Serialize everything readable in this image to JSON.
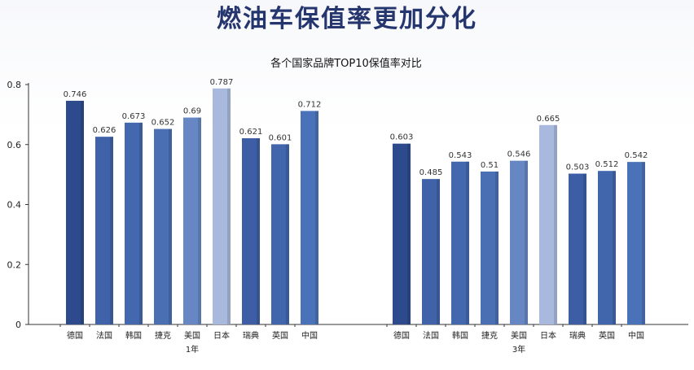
{
  "slide": {
    "title": "燃油车保值率更加分化"
  },
  "chart_data": {
    "type": "bar",
    "title": "各个国家品牌TOP10保值率对比",
    "xlabel": "",
    "ylabel": "",
    "ylim": [
      0,
      0.8
    ],
    "yticks": [
      "0",
      "0.2",
      "0.4",
      "0.6",
      "0.8"
    ],
    "grid": false,
    "groups": [
      {
        "label": "1年",
        "categories": [
          "德国",
          "法国",
          "韩国",
          "捷克",
          "美国",
          "日本",
          "瑞典",
          "英国",
          "中国"
        ],
        "values": [
          0.746,
          0.626,
          0.673,
          0.652,
          0.69,
          0.787,
          0.621,
          0.601,
          0.712
        ],
        "value_labels": [
          "0.746",
          "0.626",
          "0.673",
          "0.652",
          "0.69",
          "0.787",
          "0.621",
          "0.601",
          "0.712"
        ]
      },
      {
        "label": "3年",
        "categories": [
          "德国",
          "法国",
          "韩国",
          "捷克",
          "美国",
          "日本",
          "瑞典",
          "英国",
          "中国"
        ],
        "values": [
          0.603,
          0.485,
          0.543,
          0.51,
          0.546,
          0.665,
          0.503,
          0.512,
          0.542
        ],
        "value_labels": [
          "0.603",
          "0.485",
          "0.543",
          "0.51",
          "0.546",
          "0.665",
          "0.503",
          "0.512",
          "0.542"
        ]
      }
    ],
    "bar_colors": [
      "#2d4a8c",
      "#3f62a8",
      "#4468ad",
      "#4a6fb3",
      "#6687c3",
      "#a9b9dd",
      "#3d5ea5",
      "#4166ab",
      "#4a72b8"
    ],
    "axis_color": "#333333"
  }
}
